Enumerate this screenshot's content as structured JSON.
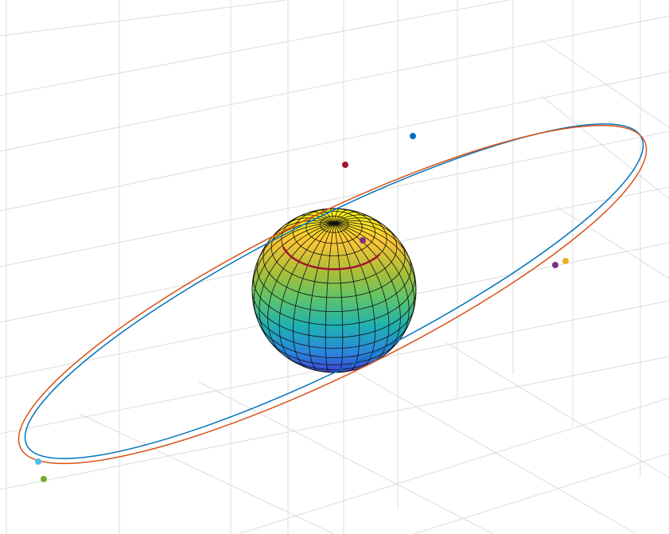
{
  "scene": {
    "orbits": [
      {
        "color": "#0072bd"
      },
      {
        "color": "#d95319"
      }
    ],
    "markers": [
      {
        "color": "#a2142f"
      },
      {
        "color": "#0072bd"
      },
      {
        "color": "#7e2f8e"
      },
      {
        "color": "#edb120"
      },
      {
        "color": "#4dbeee"
      },
      {
        "color": "#77ac30"
      },
      {
        "color": "#7e2f8e"
      }
    ],
    "track": {
      "color": "#a2142f"
    }
  }
}
